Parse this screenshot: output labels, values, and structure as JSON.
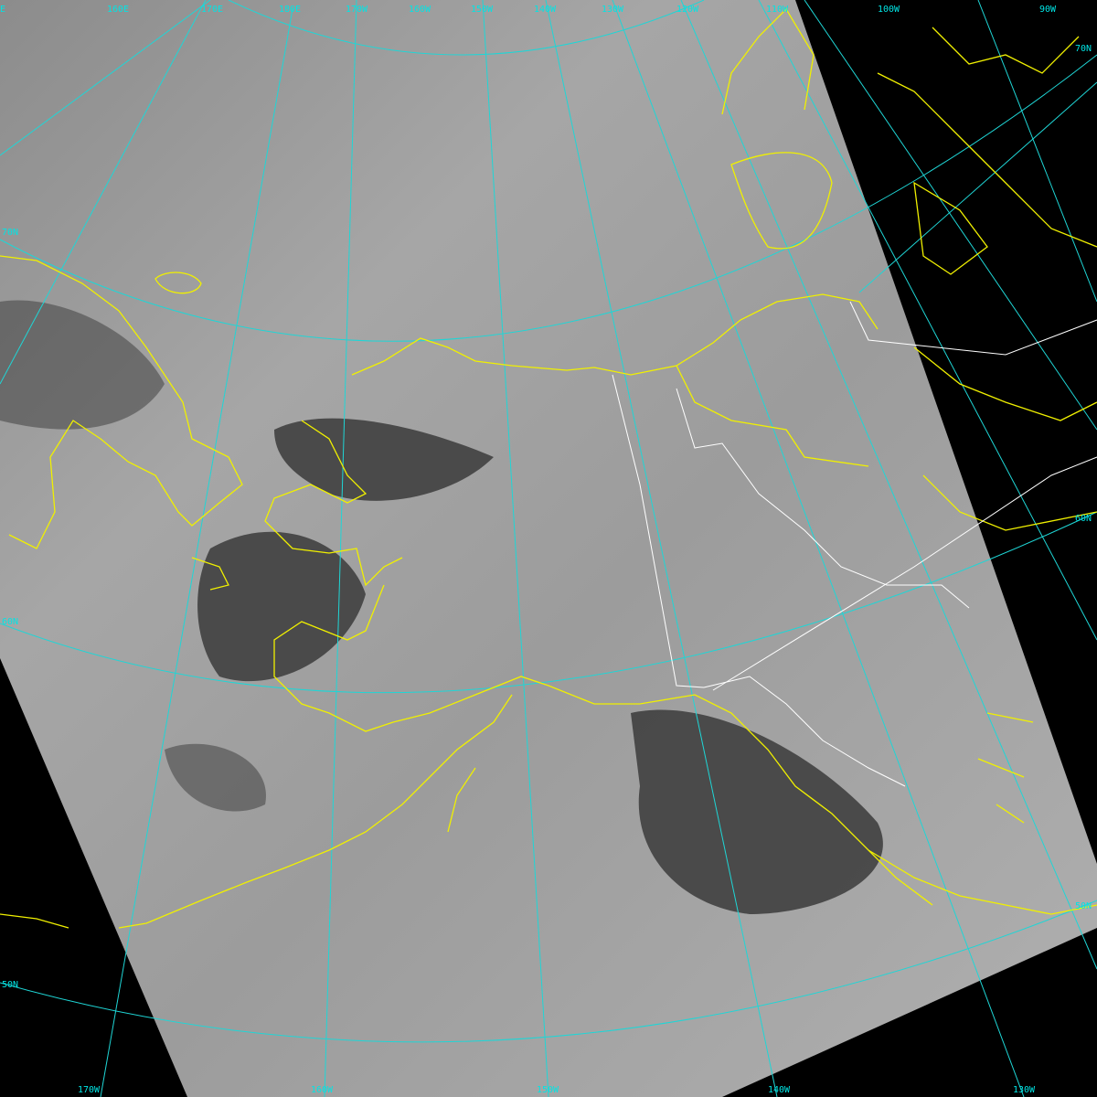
{
  "map": {
    "colors": {
      "background": "#000000",
      "grid": "#00e5e5",
      "coastline": "#ffff00",
      "border": "#ffffff",
      "imagery": "#9a9a9a"
    },
    "top_labels": [
      "E",
      "160E",
      "170E",
      "180E",
      "170W",
      "160W",
      "150W",
      "140W",
      "130W",
      "120W",
      "110W",
      "100W",
      "90W"
    ],
    "bottom_labels": [
      "170W",
      "160W",
      "150W",
      "140W",
      "130W"
    ],
    "left_labels": [
      "70N",
      "60N",
      "50N"
    ],
    "right_labels": [
      "70N",
      "60N",
      "50N"
    ]
  }
}
